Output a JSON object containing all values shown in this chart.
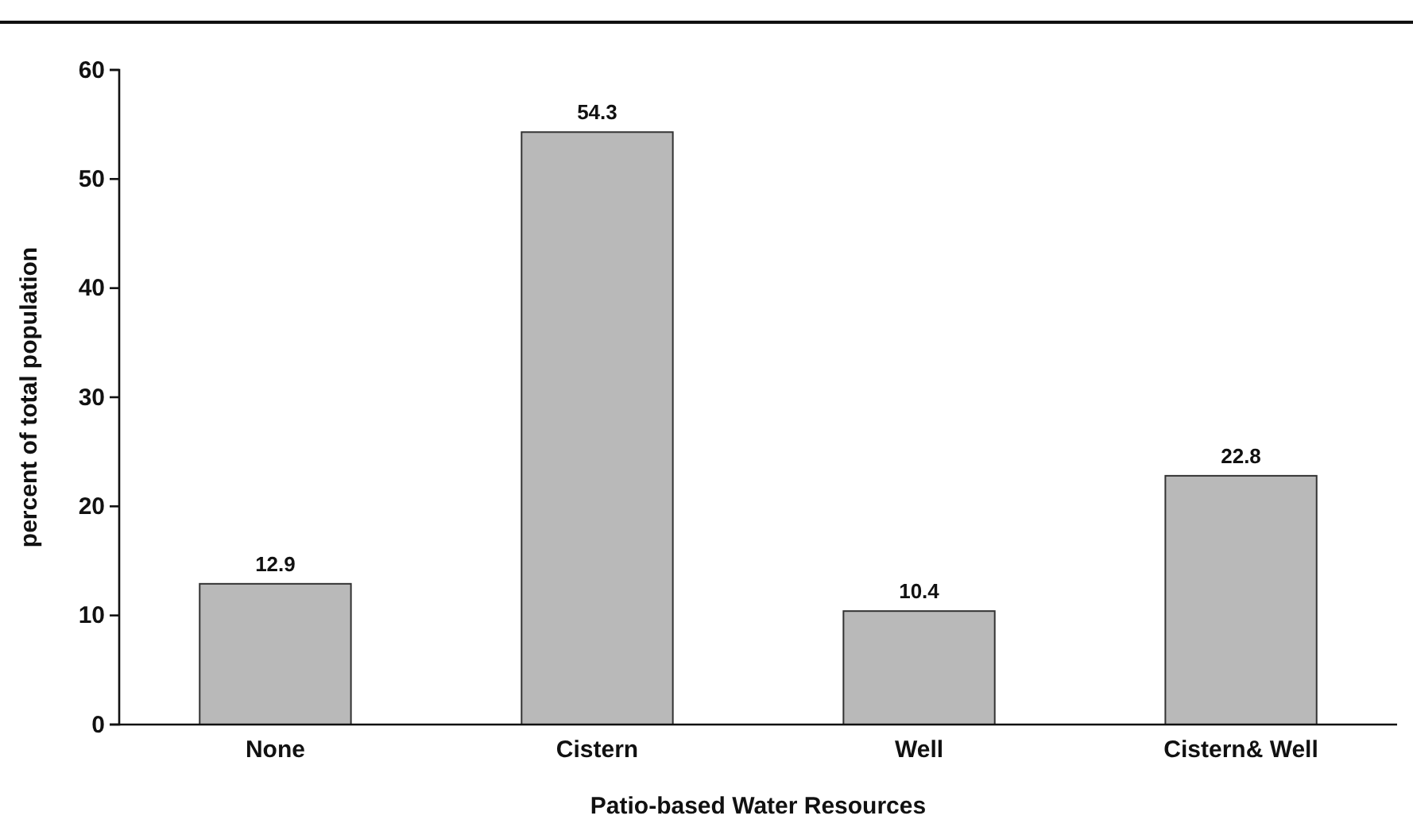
{
  "chart_data": {
    "type": "bar",
    "xlabel": "Patio-based Water Resources",
    "ylabel": "percent of total population",
    "categories": [
      "None",
      "Cistern",
      "Well",
      "Cistern& Well"
    ],
    "values": [
      12.9,
      54.3,
      10.4,
      22.8
    ],
    "color": "#b9b9b9",
    "ylim": [
      0,
      60
    ],
    "yticks": [
      0,
      10,
      20,
      30,
      40,
      50,
      60
    ],
    "data_labels": true
  }
}
